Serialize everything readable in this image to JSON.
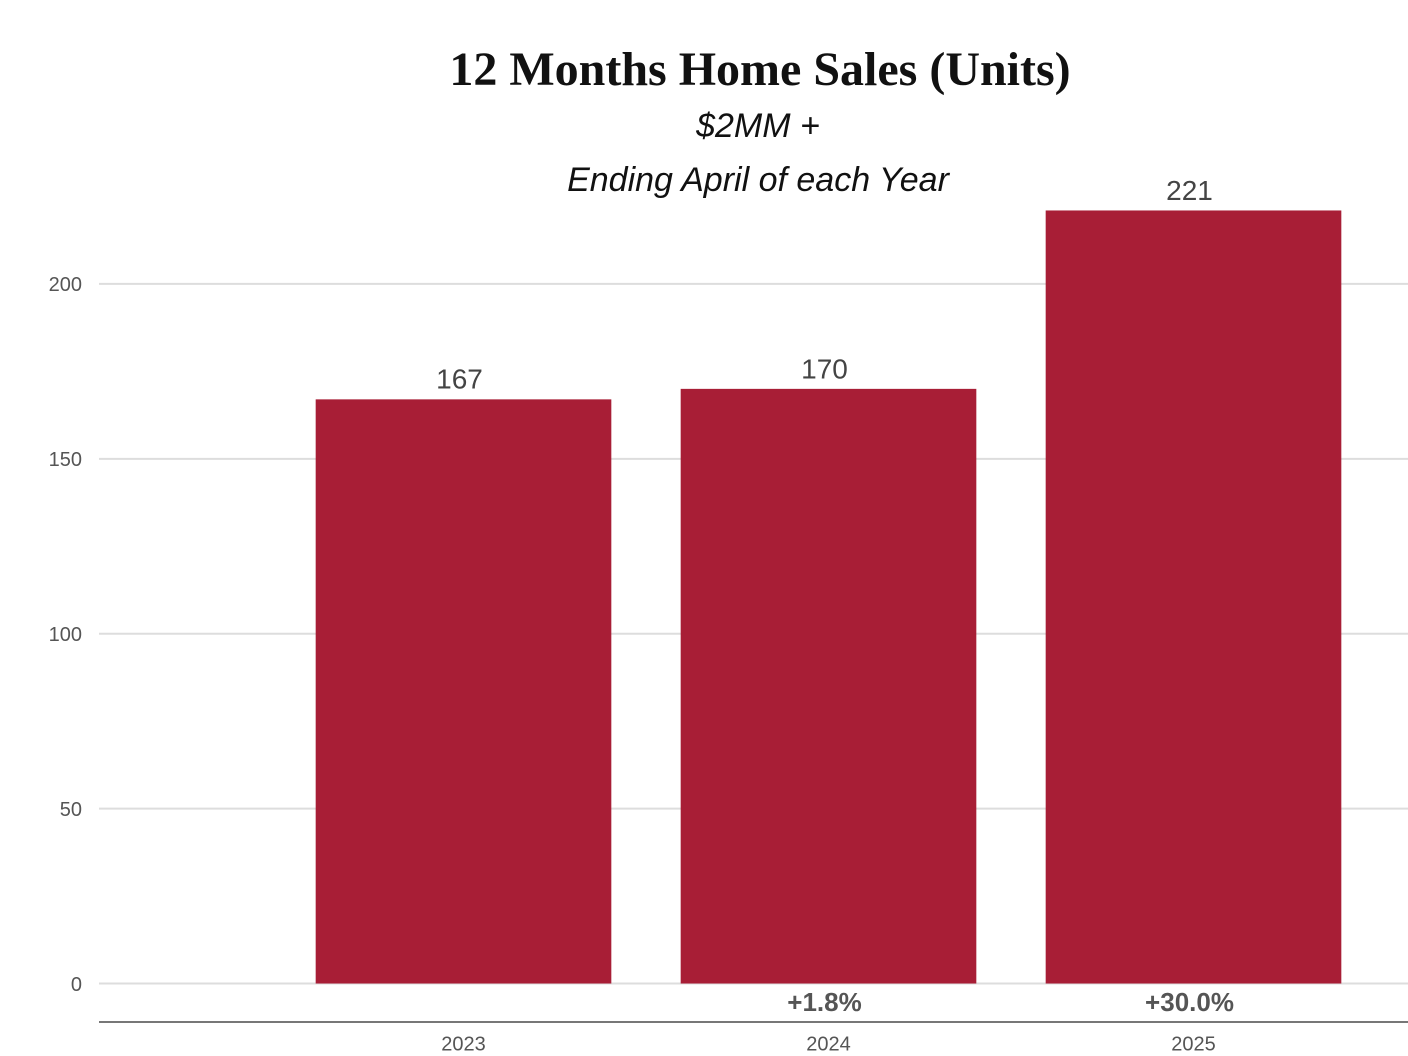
{
  "chart_data": {
    "type": "bar",
    "title": "12 Months Home Sales  (Units)",
    "subtitle": [
      "$2MM +",
      "Ending April of each Year"
    ],
    "categories": [
      "2023",
      "2024",
      "2025"
    ],
    "values": [
      167,
      170,
      221
    ],
    "change_labels": [
      null,
      "+1.8%",
      "+30.0%"
    ],
    "color": "#a81e36",
    "ylim": [
      -11,
      240
    ],
    "yticks": [
      0,
      50,
      100,
      150,
      200
    ],
    "grid": true
  }
}
